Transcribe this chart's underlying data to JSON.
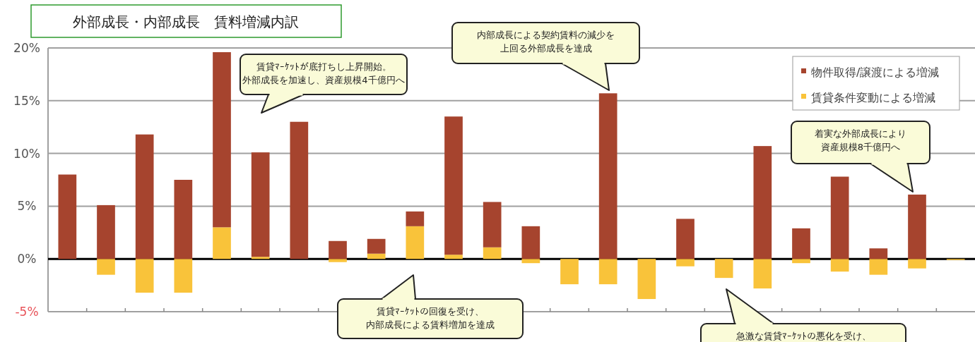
{
  "chart_data": {
    "type": "bar",
    "title": "外部成長・内部成長　賃料増減内訳",
    "stacked": true,
    "categories": [
      null,
      null,
      null,
      null,
      null,
      null,
      null,
      null,
      null,
      null,
      null,
      null,
      null,
      null,
      null,
      null,
      null,
      null,
      null,
      null,
      null,
      null,
      null,
      null
    ],
    "series": [
      {
        "name": "賃貸条件変動による増減",
        "color": "#f9c33a",
        "values": [
          0,
          -1.5,
          -3.2,
          -3.2,
          3.0,
          0.2,
          0,
          -0.3,
          0.5,
          3.1,
          0.4,
          1.1,
          -0.4,
          -2.4,
          -2.4,
          -3.8,
          -0.7,
          -1.8,
          -2.8,
          -0.4,
          -1.2,
          -1.5,
          -0.9,
          -0.1
        ]
      },
      {
        "name": "物件取得/譲渡による増減",
        "color": "#a6442e",
        "values": [
          8.0,
          5.1,
          11.8,
          7.5,
          16.6,
          9.9,
          13.0,
          1.7,
          1.4,
          1.4,
          13.1,
          4.3,
          3.1,
          0,
          15.7,
          0,
          3.8,
          0,
          10.7,
          2.9,
          7.8,
          1.0,
          6.1,
          0
        ]
      }
    ],
    "ylim": [
      -5,
      20
    ],
    "yticks": [
      {
        "value": -5,
        "label": "-5%"
      },
      {
        "value": 0,
        "label": "0%"
      },
      {
        "value": 5,
        "label": "5%"
      },
      {
        "value": 10,
        "label": "10%"
      },
      {
        "value": 15,
        "label": "15%"
      },
      {
        "value": 20,
        "label": "20%"
      }
    ],
    "grid": "y",
    "legend": "top right",
    "annotations": [
      "賃貸ﾏｰｹｯﾄが底打ちし上昇開始。",
      "外部成長を加速し、資産規模4千億円へ",
      "内部成長による契約賃料の減少を",
      "上回る外部成長を達成",
      "賃貸ﾏｰｹｯﾄの回復を受け、",
      "内部成長による賃料増加を達成",
      "着実な外部成長により",
      "資産規模8千億円へ",
      "急激な賃貸ﾏｰｹｯﾄの悪化を受け、"
    ]
  }
}
